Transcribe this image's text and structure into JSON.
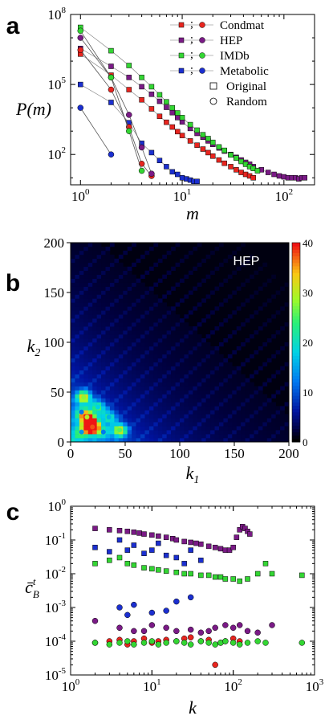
{
  "colors": {
    "condmat": "#e8251f",
    "hep": "#7a1a86",
    "imdb": "#33d633",
    "metabolic": "#1b2fd0"
  },
  "panels": {
    "a": "a",
    "b": "b",
    "c": "c"
  },
  "chart_data": [
    {
      "panel": "a",
      "type": "scatter",
      "xlabel": "m",
      "ylabel": "P(m)",
      "xscale": "log",
      "yscale": "log",
      "xlim": [
        0.8,
        200
      ],
      "ylim": [
        5,
        100000000
      ],
      "x_ticks": [
        {
          "base": "10",
          "exp": "0",
          "value": 1
        },
        {
          "base": "10",
          "exp": "1",
          "value": 10
        },
        {
          "base": "10",
          "exp": "2",
          "value": 100
        }
      ],
      "y_ticks": [
        {
          "base": "10",
          "exp": "2",
          "value": 100
        },
        {
          "base": "10",
          "exp": "5",
          "value": 100000
        },
        {
          "base": "10",
          "exp": "8",
          "value": 100000000
        }
      ],
      "legend": {
        "position": "top-right",
        "series": [
          "Condmat",
          "HEP",
          "IMDb",
          "Metabolic"
        ],
        "markers": [
          "Original",
          "Random"
        ]
      },
      "series": [
        {
          "name": "Condmat",
          "kind": "original",
          "color_key": "condmat",
          "x": [
            1,
            2,
            3,
            4,
            5,
            6,
            7,
            8,
            9,
            10,
            12,
            14,
            16,
            18,
            20,
            23,
            26,
            30,
            34,
            38,
            42,
            46,
            50
          ],
          "y": [
            2000000,
            250000,
            60000,
            22000,
            9000,
            4300,
            2400,
            1500,
            950,
            650,
            380,
            250,
            170,
            120,
            85,
            58,
            42,
            30,
            22,
            17,
            14,
            12,
            10
          ]
        },
        {
          "name": "HEP",
          "kind": "original",
          "color_key": "hep",
          "x": [
            1,
            2,
            3,
            4,
            5,
            6,
            7,
            8,
            9,
            10,
            12,
            14,
            16,
            18,
            20,
            23,
            26,
            30,
            34,
            38,
            42,
            46,
            50,
            60,
            70,
            80,
            90,
            100,
            110,
            120,
            130,
            140,
            150,
            160
          ],
          "y": [
            3500000,
            600000,
            200000,
            80000,
            38000,
            19000,
            10500,
            6200,
            3800,
            2500,
            1300,
            800,
            550,
            380,
            270,
            190,
            140,
            100,
            75,
            58,
            46,
            38,
            30,
            22,
            17,
            14,
            12,
            11,
            10,
            10,
            10,
            9,
            10,
            10
          ]
        },
        {
          "name": "IMDb",
          "kind": "original",
          "color_key": "imdb",
          "x": [
            1,
            2,
            3,
            4,
            5,
            6,
            7,
            8,
            9,
            10,
            12,
            14,
            16,
            18,
            20,
            23,
            26,
            30,
            34,
            38,
            42,
            46,
            50,
            55
          ],
          "y": [
            28000000,
            2800000,
            650000,
            200000,
            80000,
            36000,
            18000,
            10000,
            6000,
            3800,
            1900,
            1100,
            700,
            480,
            330,
            210,
            150,
            95,
            70,
            50,
            38,
            30,
            25,
            20
          ]
        },
        {
          "name": "Metabolic",
          "kind": "original",
          "color_key": "metabolic",
          "x": [
            1,
            2,
            3,
            4,
            5,
            6,
            7,
            8,
            9,
            10,
            11,
            12,
            13,
            14
          ],
          "y": [
            100000,
            17000,
            2300,
            300,
            120,
            55,
            30,
            18,
            14,
            10,
            9,
            8,
            7,
            7
          ]
        },
        {
          "name": "Condmat",
          "kind": "random",
          "color_key": "condmat",
          "x": [
            1,
            2,
            3,
            4,
            5
          ],
          "y": [
            3000000,
            60000,
            1500,
            40,
            12
          ]
        },
        {
          "name": "HEP",
          "kind": "random",
          "color_key": "hep",
          "x": [
            1,
            2,
            3,
            4,
            5
          ],
          "y": [
            10000000,
            200000,
            5000,
            200,
            15
          ]
        },
        {
          "name": "IMDb",
          "kind": "random",
          "color_key": "imdb",
          "x": [
            1,
            2,
            3,
            4
          ],
          "y": [
            20000000,
            200000,
            1000,
            20
          ]
        },
        {
          "name": "Metabolic",
          "kind": "random",
          "color_key": "metabolic",
          "x": [
            1,
            2
          ],
          "y": [
            10000,
            100
          ]
        }
      ]
    },
    {
      "panel": "b",
      "type": "heatmap",
      "xlabel": "k",
      "xlabel_sub": "1",
      "ylabel": "k",
      "ylabel_sub": "2",
      "xlim": [
        0,
        200
      ],
      "ylim": [
        0,
        200
      ],
      "x_ticks": [
        "0",
        "50",
        "100",
        "150",
        "200"
      ],
      "y_ticks": [
        "0",
        "50",
        "100",
        "150",
        "200"
      ],
      "annotation": "HEP",
      "colorbar": {
        "min": 0,
        "max": 40,
        "ticks": [
          "0",
          "10",
          "20",
          "30",
          "40"
        ]
      },
      "hotspots": [
        {
          "k1": 18,
          "k2": 18,
          "value": 40
        },
        {
          "k1": 20,
          "k2": 15,
          "value": 38
        },
        {
          "k1": 15,
          "k2": 25,
          "value": 30
        },
        {
          "k1": 12,
          "k2": 45,
          "value": 28
        },
        {
          "k1": 45,
          "k2": 12,
          "value": 26
        },
        {
          "k1": 25,
          "k2": 35,
          "value": 18
        },
        {
          "k1": 35,
          "k2": 25,
          "value": 16
        },
        {
          "k1": 10,
          "k2": 10,
          "value": 14
        },
        {
          "k1": 30,
          "k2": 10,
          "value": 12
        },
        {
          "k1": 10,
          "k2": 30,
          "value": 12
        }
      ]
    },
    {
      "panel": "c",
      "type": "scatter",
      "xlabel": "k",
      "ylabel": "c̄",
      "ylabel_sup": "t",
      "ylabel_sub": "B",
      "xscale": "log",
      "yscale": "log",
      "xlim": [
        1,
        1000
      ],
      "ylim": [
        1e-05,
        1
      ],
      "x_ticks": [
        {
          "base": "10",
          "exp": "0",
          "value": 1
        },
        {
          "base": "10",
          "exp": "1",
          "value": 10
        },
        {
          "base": "10",
          "exp": "2",
          "value": 100
        },
        {
          "base": "10",
          "exp": "3",
          "value": 1000
        }
      ],
      "y_ticks": [
        {
          "base": "10",
          "exp": "-5",
          "value": 1e-05
        },
        {
          "base": "10",
          "exp": "-4",
          "value": 0.0001
        },
        {
          "base": "10",
          "exp": "-3",
          "value": 0.001
        },
        {
          "base": "10",
          "exp": "-2",
          "value": 0.01
        },
        {
          "base": "10",
          "exp": "-1",
          "value": 0.1
        },
        {
          "base": "10",
          "exp": "0",
          "value": 1
        }
      ],
      "series": [
        {
          "name": "HEP",
          "kind": "original",
          "color_key": "hep",
          "x": [
            2,
            3,
            4,
            5,
            6,
            7,
            8,
            10,
            12,
            15,
            18,
            20,
            25,
            30,
            35,
            40,
            50,
            60,
            70,
            80,
            90,
            100,
            110,
            120,
            130,
            140,
            150,
            160
          ],
          "y": [
            0.22,
            0.2,
            0.19,
            0.18,
            0.17,
            0.16,
            0.15,
            0.14,
            0.13,
            0.12,
            0.11,
            0.1,
            0.09,
            0.085,
            0.08,
            0.075,
            0.065,
            0.06,
            0.055,
            0.05,
            0.05,
            0.06,
            0.12,
            0.2,
            0.25,
            0.22,
            0.18,
            0.15
          ]
        },
        {
          "name": "Metabolic",
          "kind": "original",
          "color_key": "metabolic",
          "x": [
            2,
            3,
            4,
            5,
            6,
            8,
            10,
            12,
            15,
            20,
            25,
            30,
            40
          ],
          "y": [
            0.06,
            0.045,
            0.1,
            0.05,
            0.07,
            0.04,
            0.05,
            0.08,
            0.035,
            0.03,
            0.02,
            0.05,
            0.025
          ]
        },
        {
          "name": "IMDb",
          "kind": "original",
          "color_key": "imdb",
          "x": [
            2,
            3,
            4,
            5,
            6,
            8,
            10,
            12,
            15,
            20,
            25,
            30,
            40,
            50,
            60,
            70,
            80,
            100,
            120,
            150,
            200,
            250,
            300,
            700
          ],
          "y": [
            0.02,
            0.025,
            0.03,
            0.02,
            0.018,
            0.015,
            0.014,
            0.013,
            0.012,
            0.011,
            0.01,
            0.01,
            0.009,
            0.009,
            0.008,
            0.008,
            0.007,
            0.007,
            0.006,
            0.007,
            0.01,
            0.02,
            0.01,
            0.009
          ]
        },
        {
          "name": "Condmat",
          "kind": "random",
          "color_key": "condmat",
          "x": [
            2,
            3,
            4,
            5,
            6,
            8,
            10,
            12,
            15,
            20,
            25,
            30,
            40,
            50,
            60,
            70,
            80,
            100,
            120
          ],
          "y": [
            9e-05,
            0.0001,
            0.00011,
            8e-05,
            0.0001,
            0.00012,
            9e-05,
            0.0001,
            0.00011,
            0.0001,
            0.00012,
            0.00013,
            0.0001,
            0.00011,
            2e-05,
            9e-05,
            0.0001,
            0.00012,
            0.0001
          ]
        },
        {
          "name": "HEP",
          "kind": "random",
          "color_key": "hep",
          "x": [
            2,
            4,
            6,
            8,
            10,
            15,
            20,
            30,
            40,
            50,
            60,
            80,
            100,
            120,
            150,
            200,
            300
          ],
          "y": [
            0.0004,
            0.00025,
            0.0002,
            0.0002,
            0.0003,
            0.00025,
            0.0002,
            0.00022,
            0.00018,
            0.0002,
            0.00025,
            0.0003,
            0.00025,
            0.0003,
            0.0002,
            0.00018,
            0.0003
          ]
        },
        {
          "name": "Metabolic",
          "kind": "random",
          "color_key": "metabolic",
          "x": [
            4,
            5,
            6,
            10,
            15,
            20,
            30
          ],
          "y": [
            0.001,
            0.0006,
            0.0012,
            0.0007,
            0.0008,
            0.0015,
            0.002
          ]
        },
        {
          "name": "IMDb",
          "kind": "random",
          "color_key": "imdb",
          "x": [
            2,
            3,
            4,
            5,
            6,
            8,
            10,
            12,
            15,
            20,
            25,
            30,
            40,
            50,
            60,
            70,
            80,
            100,
            120,
            150,
            200,
            250,
            700
          ],
          "y": [
            9e-05,
            8e-05,
            9e-05,
            0.0001,
            8e-05,
            9e-05,
            0.0001,
            8e-05,
            9e-05,
            0.0001,
            9e-05,
            8e-05,
            0.0001,
            9e-05,
            8e-05,
            9e-05,
            0.0001,
            9e-05,
            8e-05,
            9e-05,
            0.0001,
            9e-05,
            9e-05
          ]
        }
      ]
    }
  ]
}
